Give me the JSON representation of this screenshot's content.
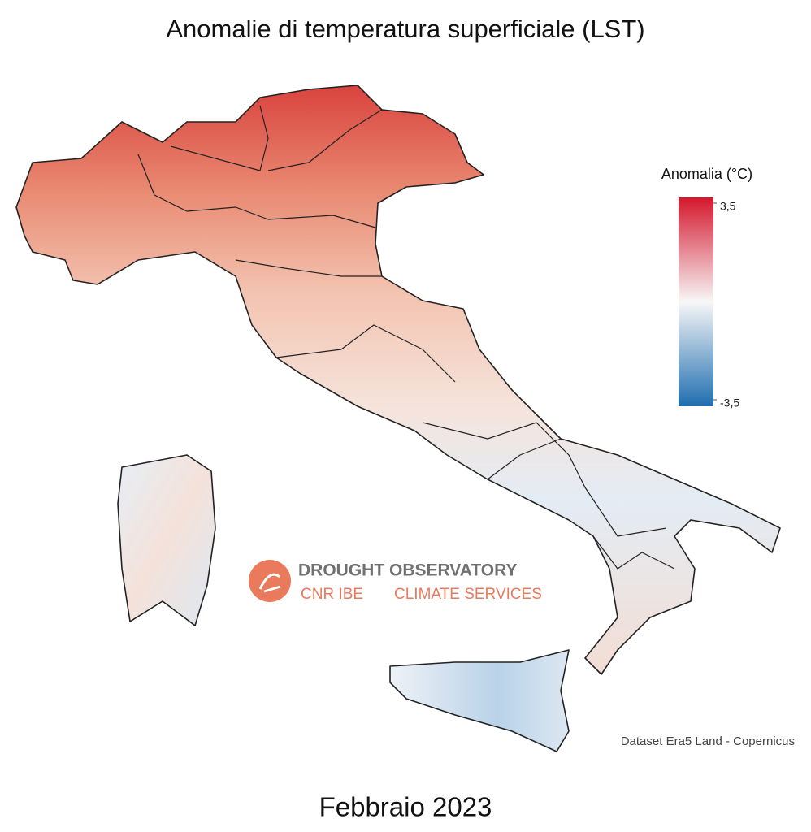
{
  "title": "Anomalie di temperatura superficiale (LST)",
  "subtitle": "Febbraio 2023",
  "legend": {
    "title": "Anomalia (°C)",
    "range": [
      -3.5,
      3.5
    ],
    "ticks": [
      {
        "value": 3.5,
        "label": "3,5"
      },
      {
        "value": -3.5,
        "label": "-3,5"
      }
    ],
    "colors": [
      "#1f6eb0",
      "#f7f7f7",
      "#d4172c"
    ]
  },
  "logo": {
    "name": "DROUGHT OBSERVATORY",
    "org": "CNR IBE",
    "unit": "CLIMATE SERVICES"
  },
  "credit": "Dataset Era5 Land - Copernicus"
}
